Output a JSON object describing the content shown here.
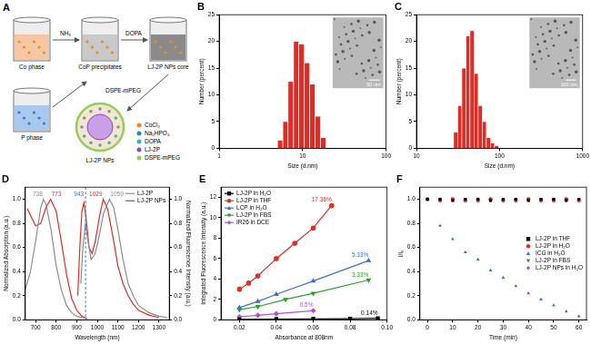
{
  "chart_data": [
    {
      "type": "histogram",
      "title": "B",
      "x_label": "Size (d.nm)",
      "y_label": "Number (percent)",
      "log": "x",
      "bins": [
        5.0,
        5.8,
        6.7,
        7.8,
        9.0,
        10.5,
        12.2,
        14.1,
        16.4,
        19.0
      ],
      "counts": [
        1.5,
        5,
        12.5,
        20,
        19.5,
        16,
        12,
        6,
        2
      ],
      "color": "#e32b24",
      "xlim": [
        1,
        100
      ],
      "xticks": [
        1,
        10,
        100
      ],
      "ylim": [
        0,
        25
      ],
      "yticks": [
        0,
        5,
        10,
        15,
        20,
        25
      ],
      "grid": false,
      "annotations": [
        {
          "text": "50 nm"
        }
      ]
    },
    {
      "type": "histogram",
      "title": "C",
      "x_label": "Size (d.nm)",
      "y_label": "Number (percent)",
      "log": "x",
      "bins": [
        28,
        31.4,
        35.2,
        39.4,
        44.1,
        49.4,
        55.3,
        62,
        69.4,
        77.7,
        87,
        97.5
      ],
      "counts": [
        3,
        8,
        15,
        21,
        22,
        14,
        8,
        5,
        2,
        1,
        0.5
      ],
      "color": "#e32b24",
      "xlim": [
        10,
        1000
      ],
      "xticks": [
        10,
        100,
        1000
      ],
      "ylim": [
        0,
        25
      ],
      "yticks": [
        0,
        5,
        10,
        15,
        20,
        25
      ],
      "grid": false,
      "annotations": [
        {
          "text": "100 nm"
        }
      ]
    },
    {
      "type": "line",
      "title": "D",
      "x_label": "Wavelength (nm)",
      "y_label": "Normalized Absorption (a.u.)",
      "y2_label": "Normalized Fluorescence Intensity (a.u.)",
      "xlim": [
        650,
        1350
      ],
      "xticks": [
        700,
        800,
        900,
        1000,
        1100,
        1200,
        1300
      ],
      "ylim": [
        0,
        1.1
      ],
      "yticks": [
        {
          "value": 0,
          "label": "0.0"
        },
        0.2,
        0.4,
        0.6,
        0.8,
        {
          "value": 1,
          "label": "1.0"
        }
      ],
      "y2lim": [
        0,
        1.1
      ],
      "y2ticks": [
        {
          "value": 0,
          "label": "0.0"
        },
        0.2,
        0.4,
        0.6,
        0.8,
        {
          "value": 1,
          "label": "1.0"
        }
      ],
      "grid": false,
      "legend": "upper right",
      "series": [
        {
          "name": "LJ-2P",
          "color": "#8c8c8c",
          "line_style": "solid",
          "x": [
            650,
            675,
            700,
            725,
            738,
            750,
            775,
            800,
            825,
            850,
            875,
            900,
            925,
            950
          ],
          "values": [
            0.25,
            0.4,
            0.65,
            0.93,
            1.0,
            0.96,
            0.75,
            0.45,
            0.25,
            0.12,
            0.06,
            0.03,
            0.02,
            0.01
          ]
        },
        {
          "name": "LJ-2P NPs",
          "color": "#e32b24",
          "line_style": "solid",
          "x": [
            660,
            680,
            700,
            725,
            750,
            773,
            800,
            825,
            850,
            875,
            900,
            925,
            950
          ],
          "values": [
            0.92,
            0.85,
            0.78,
            0.8,
            0.93,
            1.0,
            0.9,
            0.65,
            0.38,
            0.18,
            0.08,
            0.03,
            0.01
          ]
        },
        {
          "name": "LJ-2P",
          "color": "#8c8c8c",
          "line_style": "solid",
          "axis": "y2",
          "x": [
            920,
            930,
            943,
            955,
            970,
            990,
            1010,
            1030,
            1059,
            1080,
            1100,
            1125,
            1150,
            1175,
            1200,
            1250,
            1300,
            1340
          ],
          "values": [
            0.3,
            0.6,
            0.8,
            0.65,
            0.5,
            0.55,
            0.7,
            0.88,
            1.0,
            0.93,
            0.75,
            0.5,
            0.3,
            0.2,
            0.12,
            0.06,
            0.03,
            0.02
          ]
        },
        {
          "name": "LJ-2P NPs",
          "color": "#e32b24",
          "line_style": "solid",
          "axis": "y2",
          "x": [
            905,
            915,
            925,
            935,
            945,
            960,
            975,
            990,
            1010,
            1029,
            1050,
            1075,
            1100,
            1125,
            1150,
            1175,
            1200,
            1250,
            1300
          ],
          "values": [
            0.2,
            0.6,
            0.9,
            0.97,
            0.85,
            0.6,
            0.55,
            0.65,
            0.85,
            1.0,
            0.92,
            0.7,
            0.45,
            0.3,
            0.2,
            0.13,
            0.08,
            0.04,
            0.02
          ]
        }
      ],
      "annotations": [
        {
          "text": "738",
          "x": 738,
          "color": "#8c8c8c"
        },
        {
          "text": "773",
          "x": 773,
          "color": "#e32b24"
        },
        {
          "text": "943",
          "x": 943,
          "color": "#2f6fd0",
          "line_style": "dashed"
        },
        {
          "text": "1029",
          "x": 1029,
          "color": "#e32b24"
        },
        {
          "text": "1059",
          "x": 1059,
          "color": "#8c8c8c"
        }
      ]
    },
    {
      "type": "scatter",
      "title": "E",
      "x_label": "Absorbance at 808nm",
      "y_label": "Integrated Fluorescence Intensity (a.u.)",
      "xlim": [
        0.01,
        0.1
      ],
      "xticks": [
        0.02,
        0.04,
        0.06,
        0.08,
        {
          "value": 0.1,
          "label": "0.10"
        }
      ],
      "ylim": [
        0,
        13
      ],
      "yticks": [
        0,
        2,
        4,
        6,
        8,
        10,
        12
      ],
      "grid": false,
      "legend": "upper left",
      "series": [
        {
          "name": "LJ-2P in H₂O",
          "color": "#000000",
          "marker": "square",
          "line_style": "solid",
          "annotation": "0.14%",
          "x": [
            0.02,
            0.04,
            0.06,
            0.08,
            0.095
          ],
          "values": [
            0.05,
            0.08,
            0.1,
            0.12,
            0.15
          ]
        },
        {
          "name": "LJ-2P in THF",
          "color": "#e32b24",
          "marker": "circle",
          "line_style": "solid",
          "annotation": "17.36%",
          "x": [
            0.02,
            0.025,
            0.03,
            0.04,
            0.05,
            0.06,
            0.07
          ],
          "values": [
            3.0,
            3.6,
            4.3,
            6.0,
            7.5,
            9.0,
            11.2
          ]
        },
        {
          "name": "LCP in H₂O",
          "color": "#3f6fd6",
          "marker": "triangle",
          "line_style": "solid",
          "annotation": "5.33%",
          "x": [
            0.02,
            0.03,
            0.04,
            0.06,
            0.09
          ],
          "values": [
            1.2,
            1.8,
            2.5,
            3.8,
            5.8
          ]
        },
        {
          "name": "LJ-2P in FBS",
          "color": "#2ca02c",
          "marker": "triangle_down",
          "line_style": "solid",
          "annotation": "3.33%",
          "x": [
            0.02,
            0.03,
            0.045,
            0.06,
            0.09
          ],
          "values": [
            1.0,
            1.3,
            2.0,
            2.6,
            3.9
          ]
        },
        {
          "name": "IR26 in DCE",
          "color": "#b44fd9",
          "marker": "diamond",
          "line_style": "solid",
          "annotation": "0.5%",
          "x": [
            0.02,
            0.03,
            0.04,
            0.06
          ],
          "values": [
            0.3,
            0.45,
            0.6,
            0.9
          ]
        }
      ]
    },
    {
      "type": "scatter",
      "title": "F",
      "x_label": "Time (min)",
      "y_label": "I/I₀",
      "x": [
        0,
        5,
        10,
        15,
        20,
        25,
        30,
        35,
        40,
        45,
        50,
        55,
        60
      ],
      "xlim": [
        -3,
        63
      ],
      "xticks": [
        0,
        10,
        20,
        30,
        40,
        50,
        60
      ],
      "ylim": [
        0,
        1.1
      ],
      "yticks": [
        {
          "value": 0,
          "label": "0.0"
        },
        0.2,
        0.4,
        0.6,
        0.8,
        {
          "value": 1,
          "label": "1.0"
        }
      ],
      "grid": false,
      "legend": "right",
      "series": [
        {
          "name": "LJ-2P in THF",
          "color": "#000000",
          "marker": "square",
          "values": [
            1,
            1,
            0.99,
            1,
            1,
            0.99,
            1,
            1,
            0.99,
            1,
            1,
            0.99,
            1
          ]
        },
        {
          "name": "LJ-2P in H₂O",
          "color": "#e32b24",
          "marker": "circle",
          "values": [
            1,
            0.99,
            1,
            0.99,
            0.99,
            1,
            0.99,
            0.99,
            1,
            0.99,
            0.99,
            1,
            0.99
          ]
        },
        {
          "name": "ICG in H₂O",
          "color": "#3f6fd6",
          "marker": "triangle",
          "values": [
            1,
            0.78,
            0.67,
            0.56,
            0.5,
            0.41,
            0.35,
            0.28,
            0.22,
            0.17,
            0.12,
            0.07,
            0.03
          ]
        },
        {
          "name": "LJ-2P in FBS",
          "color": "#2ca02c",
          "marker": "triangle_down",
          "values": [
            1,
            1,
            0.99,
            1,
            1,
            0.99,
            1,
            1,
            0.99,
            1,
            1,
            0.99,
            1
          ]
        },
        {
          "name": "LJ-2P NPs in H₂O",
          "color": "#b44fd9",
          "marker": "diamond",
          "values": [
            1,
            1,
            1,
            0.99,
            1,
            1,
            0.99,
            1,
            1,
            0.99,
            1,
            1,
            0.99
          ]
        }
      ]
    }
  ],
  "diagram": {
    "title": "A",
    "beakers": [
      {
        "label": "Co phase"
      },
      {
        "label": "CoP precipitates"
      },
      {
        "label": "LJ-2P NPs core"
      },
      {
        "label": "P phase"
      }
    ],
    "arrows": [
      {
        "label": "NH₃"
      },
      {
        "label": "DOPA"
      },
      {
        "label": "DSPE-mPEG"
      }
    ],
    "product": {
      "label": "LJ-2P NPs"
    },
    "legend": [
      {
        "label": "CoCl₂",
        "color": "#f08a24"
      },
      {
        "label": "Na₂HPO₄",
        "color": "#2f7fd0"
      },
      {
        "label": "DOPA",
        "color": "#3bb3a8"
      },
      {
        "label": "LJ-2P",
        "color": "#7a4fc2"
      },
      {
        "label": "DSPE-mPEG",
        "color": "#8fcf5a"
      }
    ]
  }
}
